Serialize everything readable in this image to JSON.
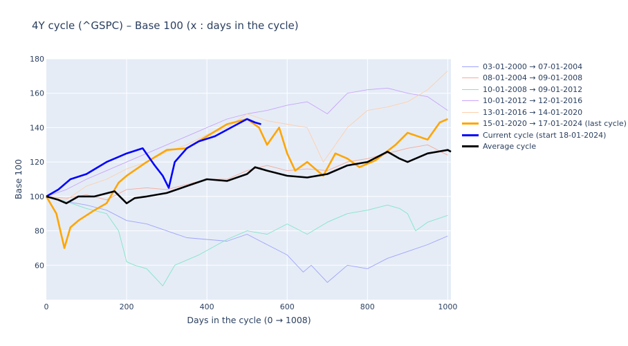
{
  "chart_data": {
    "type": "line",
    "title": "4Y cycle (^GSPC) – Base 100 (x : days in the cycle)",
    "xlabel": "Days in the cycle (0 → 1008)",
    "ylabel": "Base 100",
    "xlim": [
      0,
      1008
    ],
    "ylim": [
      40,
      180
    ],
    "xticks": [
      0,
      200,
      400,
      600,
      800,
      1000
    ],
    "yticks": [
      60,
      80,
      100,
      120,
      140,
      160,
      180
    ],
    "grid": true,
    "legend_position": "right",
    "series": [
      {
        "name": "03-01-2000 → 07-01-2004",
        "color": "#9ea3fb",
        "width": "thin",
        "x": [
          0,
          50,
          100,
          150,
          200,
          250,
          300,
          350,
          400,
          450,
          500,
          550,
          600,
          640,
          660,
          700,
          750,
          800,
          850,
          900,
          950,
          1000
        ],
        "y": [
          100,
          97,
          95,
          92,
          86,
          84,
          80,
          76,
          75,
          74,
          78,
          72,
          66,
          56,
          60,
          50,
          60,
          58,
          64,
          68,
          72,
          77
        ]
      },
      {
        "name": "08-01-2004 → 09-01-2008",
        "color": "#f5a99b",
        "width": "thin",
        "x": [
          0,
          50,
          100,
          150,
          200,
          250,
          300,
          350,
          400,
          450,
          500,
          550,
          600,
          650,
          700,
          750,
          800,
          850,
          900,
          950,
          1000
        ],
        "y": [
          100,
          99,
          101,
          98,
          104,
          105,
          104,
          107,
          110,
          110,
          115,
          118,
          115,
          116,
          115,
          120,
          122,
          125,
          128,
          130,
          124
        ]
      },
      {
        "name": "10-01-2008 → 09-01-2012",
        "color": "#7fe5c8",
        "width": "thin",
        "x": [
          0,
          50,
          100,
          150,
          180,
          200,
          220,
          250,
          290,
          320,
          380,
          450,
          500,
          550,
          600,
          650,
          700,
          750,
          800,
          850,
          880,
          900,
          920,
          950,
          1000
        ],
        "y": [
          100,
          97,
          93,
          90,
          80,
          62,
          60,
          58,
          48,
          60,
          66,
          75,
          80,
          78,
          84,
          78,
          85,
          90,
          92,
          95,
          93,
          90,
          80,
          85,
          89
        ]
      },
      {
        "name": "10-01-2012 → 12-01-2016",
        "color": "#c8a3fc",
        "width": "thin",
        "x": [
          0,
          50,
          100,
          150,
          200,
          250,
          300,
          350,
          400,
          450,
          500,
          550,
          600,
          650,
          700,
          750,
          800,
          850,
          900,
          950,
          1000
        ],
        "y": [
          100,
          104,
          110,
          115,
          120,
          125,
          130,
          135,
          140,
          145,
          148,
          150,
          153,
          155,
          148,
          160,
          162,
          163,
          160,
          158,
          150
        ]
      },
      {
        "name": "13-01-2016 → 14-01-2020",
        "color": "#ffcfab",
        "width": "thin",
        "x": [
          0,
          50,
          100,
          150,
          200,
          250,
          300,
          350,
          400,
          450,
          500,
          550,
          600,
          650,
          690,
          720,
          750,
          800,
          850,
          900,
          950,
          1000
        ],
        "y": [
          100,
          98,
          106,
          110,
          116,
          120,
          126,
          130,
          136,
          140,
          148,
          144,
          142,
          140,
          120,
          130,
          140,
          150,
          152,
          155,
          162,
          173
        ]
      },
      {
        "name": "15-01-2020 → 17-01-2024 (last cycle)",
        "color": "#ffa500",
        "width": "thick",
        "x": [
          0,
          25,
          45,
          60,
          80,
          120,
          150,
          180,
          200,
          250,
          300,
          350,
          400,
          450,
          500,
          530,
          550,
          580,
          600,
          620,
          650,
          690,
          720,
          750,
          780,
          820,
          870,
          900,
          950,
          980,
          1000
        ],
        "y": [
          100,
          90,
          70,
          82,
          86,
          92,
          96,
          108,
          112,
          120,
          127,
          128,
          135,
          142,
          145,
          140,
          130,
          140,
          125,
          115,
          120,
          112,
          125,
          122,
          117,
          121,
          130,
          137,
          133,
          143,
          145
        ]
      },
      {
        "name": "Current cycle (start 18-01-2024)",
        "color": "#0000ff",
        "width": "thick",
        "x": [
          0,
          30,
          60,
          100,
          150,
          180,
          200,
          240,
          270,
          290,
          305,
          320,
          350,
          380,
          420,
          460,
          500,
          520,
          535
        ],
        "y": [
          100,
          104,
          110,
          113,
          120,
          123,
          125,
          128,
          118,
          112,
          105,
          120,
          128,
          132,
          135,
          140,
          145,
          143,
          142
        ]
      },
      {
        "name": "Average cycle",
        "color": "#000000",
        "width": "thick",
        "x": [
          0,
          30,
          50,
          80,
          120,
          170,
          200,
          220,
          250,
          300,
          350,
          400,
          450,
          500,
          520,
          550,
          600,
          650,
          700,
          750,
          800,
          850,
          880,
          900,
          950,
          1000,
          1008
        ],
        "y": [
          100,
          98,
          96,
          100,
          100,
          103,
          96,
          99,
          100,
          102,
          106,
          110,
          109,
          113,
          117,
          115,
          112,
          111,
          113,
          118,
          120,
          126,
          122,
          120,
          125,
          127,
          126
        ]
      }
    ]
  }
}
